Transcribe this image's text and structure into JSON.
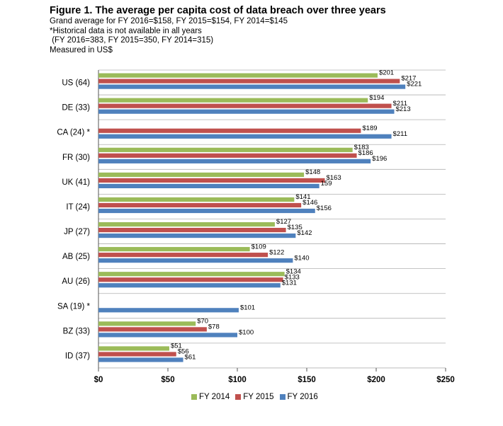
{
  "header": {
    "title": "Figure 1. The average per capita cost of data breach over three years",
    "line1": "Grand average for FY 2016=$158, FY 2015=$154, FY 2014=$145",
    "line2": "*Historical data is not available in all years",
    "line3": " (FY 2016=383, FY 2015=350, FY 2014=315)",
    "line4": "Measured in US$"
  },
  "chart_data": {
    "type": "bar",
    "orientation": "horizontal",
    "categories": [
      "US (64)",
      "DE (33)",
      "CA (24) *",
      "FR (30)",
      "UK (41)",
      "IT (24)",
      "JP (27)",
      "AB (25)",
      "AU (26)",
      "SA (19) *",
      "BZ (33)",
      "ID (37)"
    ],
    "series": [
      {
        "name": "FY 2014",
        "color": "#9bbb59",
        "values": [
          201,
          194,
          null,
          183,
          148,
          141,
          127,
          109,
          134,
          null,
          70,
          51
        ],
        "labels": [
          "$201",
          "$194",
          null,
          "$183",
          "$148",
          "$141",
          "$127",
          "$109",
          "$134",
          null,
          "$70",
          "$51"
        ]
      },
      {
        "name": "FY 2015",
        "color": "#c0504d",
        "values": [
          217,
          211,
          189,
          186,
          163,
          146,
          135,
          122,
          133,
          null,
          78,
          56
        ],
        "labels": [
          "$217",
          "$211",
          "$189",
          "$186",
          "$163",
          "$146",
          "$135",
          "$122",
          "$133",
          null,
          "$78",
          "$56"
        ]
      },
      {
        "name": "FY 2016",
        "color": "#4f81bd",
        "values": [
          221,
          213,
          211,
          196,
          159,
          156,
          142,
          140,
          131,
          101,
          100,
          61
        ],
        "labels": [
          "$221",
          "$213",
          "$211",
          "$196",
          "159",
          "$156",
          "$142",
          "$140",
          "$131",
          "$101",
          "$100",
          "$61"
        ]
      }
    ],
    "xlim": [
      0,
      250
    ],
    "xticks": [
      0,
      50,
      100,
      150,
      200,
      250
    ],
    "xtick_labels": [
      "$0",
      "$50",
      "$100",
      "$150",
      "$200",
      "$250"
    ],
    "grid": "horizontal-separators",
    "legend_placement": "bottom"
  }
}
